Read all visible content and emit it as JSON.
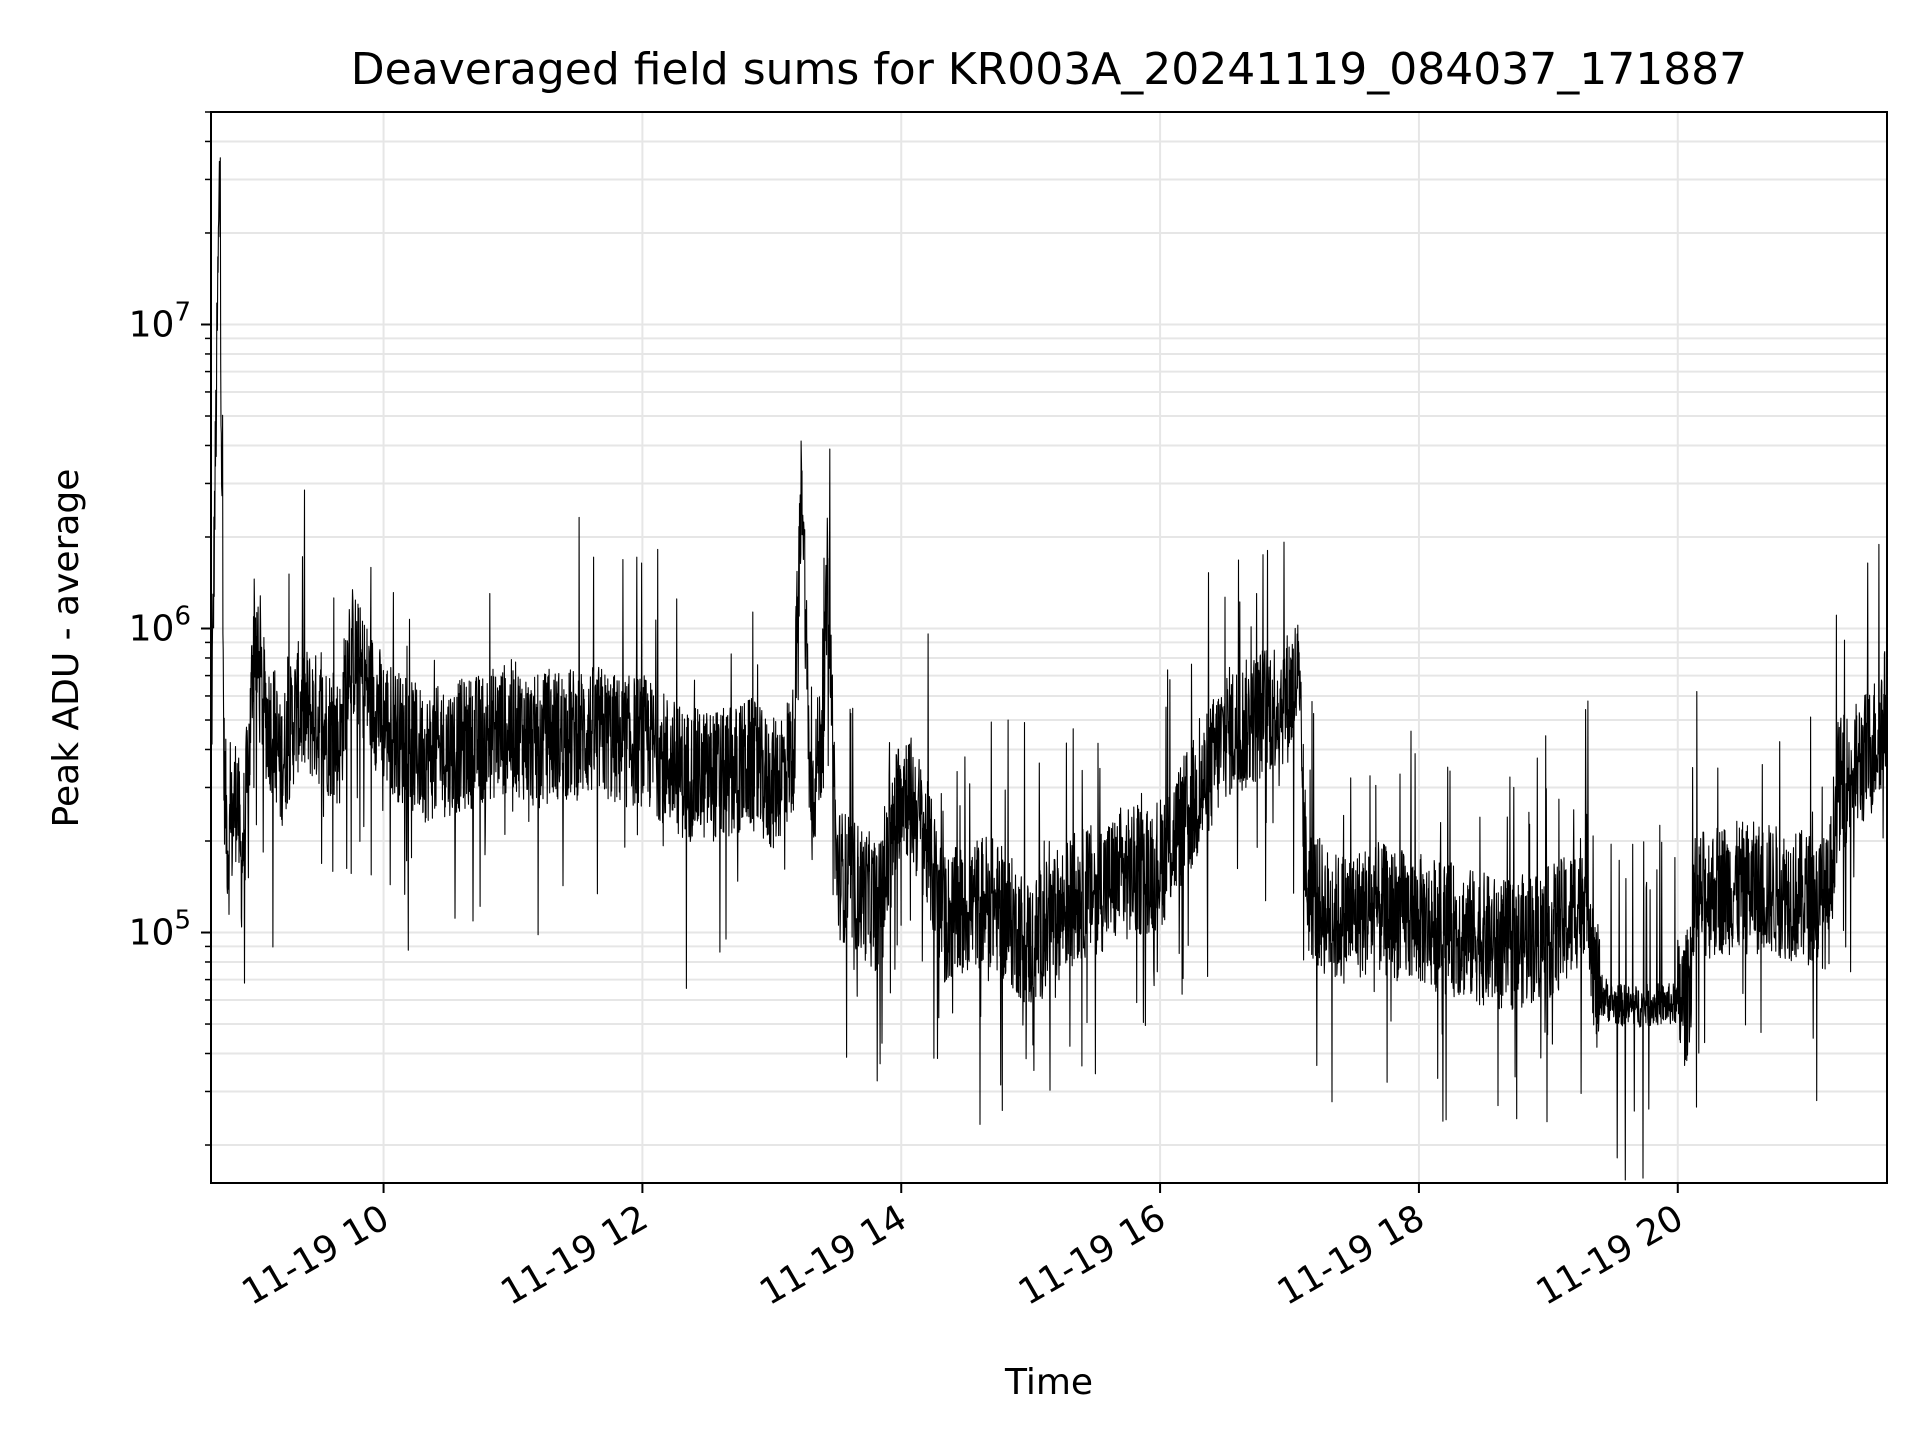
{
  "chart_data": {
    "type": "line",
    "title": "Deaveraged field sums for KR003A_20241119_084037_171887",
    "xlabel": "Time",
    "ylabel": "Peak ADU - average",
    "xlim": [
      "2024-11-19 08:40",
      "2024-11-19 21:37"
    ],
    "ylim": [
      15000,
      50000000
    ],
    "yscale": "log",
    "grid": true,
    "x_ticks": [
      "11-19 10",
      "11-19 12",
      "11-19 14",
      "11-19 16",
      "11-19 18",
      "11-19 20"
    ],
    "x_tick_hours": [
      10,
      12,
      14,
      16,
      18,
      20
    ],
    "y_ticks": [
      {
        "base": "10",
        "exp": "5",
        "value": 100000
      },
      {
        "base": "10",
        "exp": "6",
        "value": 1000000
      },
      {
        "base": "10",
        "exp": "7",
        "value": 10000000
      }
    ],
    "series": [
      {
        "color": "#000000",
        "x": [
          "2024-11-19 08:40",
          "2024-11-19 08:44",
          "2024-11-19 08:46",
          "2024-11-19 08:48",
          "2024-11-19 08:52",
          "2024-11-19 08:54",
          "2024-11-19 08:58",
          "2024-11-19 09:00",
          "2024-11-19 09:02",
          "2024-11-19 09:06",
          "2024-11-19 09:10",
          "2024-11-19 09:12",
          "2024-11-19 09:20",
          "2024-11-19 09:30",
          "2024-11-19 09:40",
          "2024-11-19 09:44",
          "2024-11-19 09:50",
          "2024-11-19 10:00",
          "2024-11-19 10:10",
          "2024-11-19 10:20",
          "2024-11-19 10:30",
          "2024-11-19 10:40",
          "2024-11-19 10:50",
          "2024-11-19 11:00",
          "2024-11-19 11:10",
          "2024-11-19 11:20",
          "2024-11-19 11:30",
          "2024-11-19 11:40",
          "2024-11-19 11:50",
          "2024-11-19 12:00",
          "2024-11-19 12:20",
          "2024-11-19 12:40",
          "2024-11-19 12:50",
          "2024-11-19 13:00",
          "2024-11-19 13:10",
          "2024-11-19 13:14",
          "2024-11-19 13:18",
          "2024-11-19 13:20",
          "2024-11-19 13:24",
          "2024-11-19 13:26",
          "2024-11-19 13:30",
          "2024-11-19 13:40",
          "2024-11-19 13:50",
          "2024-11-19 13:56",
          "2024-11-19 14:00",
          "2024-11-19 14:10",
          "2024-11-19 14:20",
          "2024-11-19 14:40",
          "2024-11-19 14:55",
          "2024-11-19 15:00",
          "2024-11-19 15:10",
          "2024-11-19 15:20",
          "2024-11-19 15:40",
          "2024-11-19 16:00",
          "2024-11-19 16:20",
          "2024-11-19 16:30",
          "2024-11-19 16:40",
          "2024-11-19 16:50",
          "2024-11-19 17:00",
          "2024-11-19 17:04",
          "2024-11-19 17:08",
          "2024-11-19 17:20",
          "2024-11-19 17:40",
          "2024-11-19 18:00",
          "2024-11-19 18:20",
          "2024-11-19 18:40",
          "2024-11-19 19:00",
          "2024-11-19 19:10",
          "2024-11-19 19:18",
          "2024-11-19 19:22",
          "2024-11-19 19:30",
          "2024-11-19 19:40",
          "2024-11-19 19:50",
          "2024-11-19 19:58",
          "2024-11-19 20:04",
          "2024-11-19 20:10",
          "2024-11-19 20:20",
          "2024-11-19 20:40",
          "2024-11-19 21:00",
          "2024-11-19 21:10",
          "2024-11-19 21:14",
          "2024-11-19 21:20",
          "2024-11-19 21:30",
          "2024-11-19 21:37"
        ],
        "y": [
          350000,
          32000000,
          350000,
          180000,
          300000,
          160000,
          420000,
          1100000,
          700000,
          500000,
          450000,
          350000,
          550000,
          500000,
          420000,
          900000,
          700000,
          500000,
          420000,
          380000,
          400000,
          420000,
          450000,
          480000,
          420000,
          450000,
          450000,
          460000,
          420000,
          430000,
          330000,
          330000,
          360000,
          300000,
          400000,
          3300000,
          250000,
          320000,
          500000,
          1700000,
          160000,
          140000,
          120000,
          200000,
          320000,
          220000,
          110000,
          130000,
          100000,
          90000,
          110000,
          130000,
          150000,
          170000,
          300000,
          450000,
          480000,
          550000,
          600000,
          700000,
          140000,
          110000,
          120000,
          110000,
          100000,
          90000,
          100000,
          110000,
          150000,
          65000,
          58000,
          57000,
          58000,
          58000,
          60000,
          130000,
          140000,
          140000,
          130000,
          125000,
          300000,
          330000,
          400000,
          550000
        ]
      }
    ]
  }
}
